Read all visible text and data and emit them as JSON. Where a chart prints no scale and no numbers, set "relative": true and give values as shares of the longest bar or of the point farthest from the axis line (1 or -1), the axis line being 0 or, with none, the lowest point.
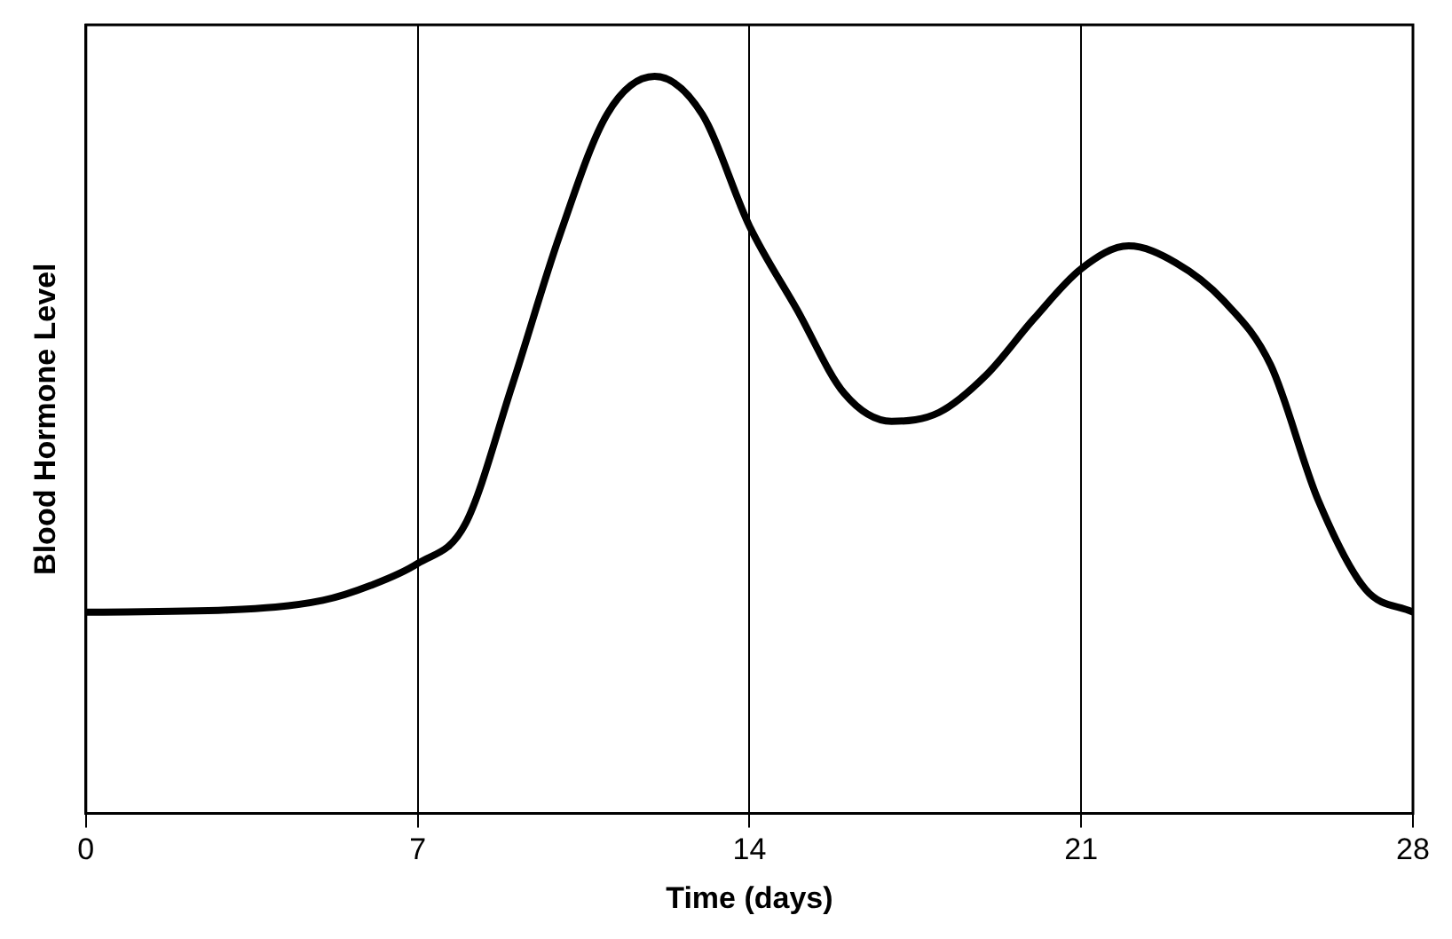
{
  "chart_data": {
    "type": "line",
    "xlabel": "Time (days)",
    "ylabel": "Blood Hormone Level",
    "relative": true,
    "xlim": [
      0,
      28
    ],
    "xticks": [
      0,
      7,
      14,
      21,
      28
    ],
    "grid": "x",
    "marker": "none",
    "line_style": "solid",
    "series": [
      {
        "color": "#000000",
        "x": [
          0,
          3,
          5,
          6,
          7,
          8,
          9,
          10,
          11,
          12,
          13,
          14,
          15,
          16,
          17,
          18,
          19,
          20,
          21,
          22,
          23,
          24,
          25,
          26,
          27,
          28
        ],
        "values": [
          0.273,
          0.276,
          0.289,
          0.309,
          0.339,
          0.392,
          0.582,
          0.785,
          0.949,
          1,
          0.949,
          0.797,
          0.684,
          0.57,
          0.532,
          0.544,
          0.595,
          0.671,
          0.739,
          0.77,
          0.747,
          0.696,
          0.608,
          0.425,
          0.304,
          0.273
        ]
      }
    ]
  }
}
